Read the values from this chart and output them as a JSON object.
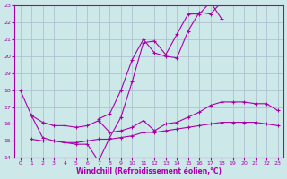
{
  "xlabel": "Windchill (Refroidissement éolien,°C)",
  "bg_color": "#cce8e8",
  "line_color": "#aa00aa",
  "grid_color": "#aabbcc",
  "xlim": [
    -0.5,
    23.5
  ],
  "ylim": [
    14,
    23
  ],
  "xticks": [
    0,
    1,
    2,
    3,
    4,
    5,
    6,
    7,
    8,
    9,
    10,
    11,
    12,
    13,
    14,
    15,
    16,
    17,
    18,
    19,
    20,
    21,
    22,
    23
  ],
  "yticks": [
    14,
    15,
    16,
    17,
    18,
    19,
    20,
    21,
    22,
    23
  ],
  "series": [
    {
      "x": [
        0,
        1,
        2,
        3,
        4,
        5,
        6,
        7,
        8,
        9,
        10,
        11,
        12,
        13,
        14,
        15,
        16,
        17,
        18
      ],
      "y": [
        18,
        16.5,
        15.2,
        15.0,
        14.9,
        14.8,
        14.8,
        13.8,
        15.2,
        16.4,
        18.5,
        20.8,
        20.9,
        20.1,
        21.3,
        22.5,
        22.5,
        23.2,
        22.2
      ]
    },
    {
      "x": [
        7,
        8,
        9,
        10,
        11,
        12,
        13,
        14,
        15,
        16,
        17,
        18
      ],
      "y": [
        16.3,
        16.6,
        18.0,
        19.8,
        21.0,
        20.2,
        20.0,
        19.9,
        21.5,
        22.6,
        22.5,
        23.2
      ]
    },
    {
      "x": [
        1,
        2,
        3,
        4,
        5,
        6,
        7,
        8,
        9,
        10,
        11,
        12,
        13,
        14,
        15,
        16,
        17,
        18,
        19,
        20,
        21,
        22,
        23
      ],
      "y": [
        16.5,
        16.1,
        15.9,
        15.9,
        15.8,
        15.9,
        16.2,
        15.5,
        15.6,
        15.8,
        16.2,
        15.6,
        16.0,
        16.1,
        16.4,
        16.7,
        17.1,
        17.3,
        17.3,
        17.3,
        17.2,
        17.2,
        16.8
      ]
    },
    {
      "x": [
        1,
        2,
        3,
        4,
        5,
        6,
        7,
        8,
        9,
        10,
        11,
        12,
        13,
        14,
        15,
        16,
        17,
        18,
        19,
        20,
        21,
        22,
        23
      ],
      "y": [
        15.1,
        15.0,
        15.0,
        14.9,
        14.9,
        15.0,
        15.1,
        15.1,
        15.2,
        15.3,
        15.5,
        15.5,
        15.6,
        15.7,
        15.8,
        15.9,
        16.0,
        16.1,
        16.1,
        16.1,
        16.1,
        16.0,
        15.9
      ]
    }
  ]
}
